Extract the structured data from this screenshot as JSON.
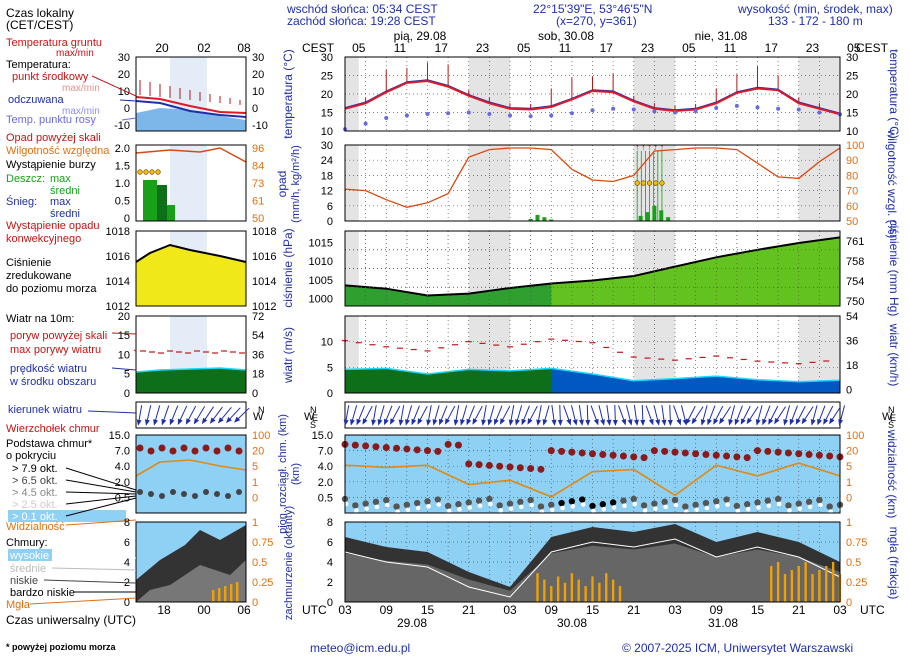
{
  "header": {
    "sunrise": "wschód słońca: 05:34 CEST",
    "sunset": "zachód słońca: 19:28 CEST",
    "coords": "22°15'39\"E, 53°46'5\"N",
    "grid": "(x=270, y=361)",
    "altitude_label": "wysokość (min, środek, max)",
    "altitude_values": "133 - 172 - 180 m"
  },
  "legend": {
    "local_time": "Czas lokalny",
    "local_time_zone": "(CET/CEST)",
    "soil_temp": "Temperatura gruntu",
    "soil_temp_minmax": "max/min",
    "temperature": "Temperatura:",
    "temp_mid": "punkt środkowy",
    "temp_max": "max/min",
    "temp_perceived": "odczuwana",
    "temp_perceived_minmax": "max/min",
    "dewpoint": "Temp. punktu rosy",
    "precip_above": "Opad powyżej skali",
    "humidity": "Wilgotność względna",
    "storm": "Wystąpienie burzy",
    "rain": "Deszcz:",
    "rain_max": "max",
    "rain_avg": "średni",
    "snow": "Śnieg:",
    "snow_max": "max",
    "snow_avg": "średni",
    "precip_conv1": "Wystąpienie opadu",
    "precip_conv2": "konwekcyjnego",
    "pressure1": "Ciśnienie",
    "pressure2": "zredukowane",
    "pressure3": "do poziomu morza",
    "wind_title": "Wiatr na 10m:",
    "gust_above": "poryw powyżej skali",
    "gust_max": "max porywy wiatru",
    "wind_speed1": "prędkość wiatru",
    "wind_speed2": "w środku obszaru",
    "wind_dir": "kierunek wiatru",
    "cloud_top": "Wierzchołek chmur",
    "cloud_base1": "Podstawa chmur*",
    "cloud_base2": "o pokryciu",
    "okt1": "> 7.9 okt.",
    "okt2": "> 6.5 okt.",
    "okt3": "> 4.5 okt.",
    "okt4": "> 2.5 okt.",
    "okt5": "> 0.1 okt.",
    "visibility": "Widzialność",
    "clouds": "Chmury:",
    "cl_high": "wysokie",
    "cl_mid": "średnie",
    "cl_low": "niskie",
    "cl_vlow": "bardzo niskie",
    "fog": "Mgła",
    "utc": "Czas uniwersalny (UTC)",
    "footnote": "* powyżej poziomu morza"
  },
  "axes": {
    "cest": "CEST",
    "utc": "UTC",
    "days": [
      "pią, 29.08",
      "sob, 30.08",
      "nie, 31.08"
    ],
    "utc_days": [
      "29.08",
      "30.08",
      "31.08"
    ],
    "top_hours": [
      "05",
      "11",
      "17",
      "23",
      "05",
      "11",
      "17",
      "23",
      "05",
      "11",
      "17",
      "23",
      "05"
    ],
    "bottom_hours": [
      "03",
      "09",
      "15",
      "21",
      "03",
      "09",
      "15",
      "21",
      "03",
      "09",
      "15",
      "21",
      "03"
    ],
    "legend_top_hours": [
      "20",
      "02",
      "08"
    ],
    "legend_bottom_hours": [
      "18",
      "00",
      "06"
    ],
    "temp_ticks": [
      "30",
      "25",
      "20",
      "15",
      "10"
    ],
    "temp_title": "temperatura (°C)",
    "precip_title1": "opad",
    "precip_title2": "(mm/h, kg/m²/h)",
    "precip_ticks": [
      "30",
      "24",
      "18",
      "12",
      "6",
      "0"
    ],
    "hum_title": "wilgotność wzgl. (%)",
    "hum_ticks": [
      "100",
      "90",
      "80",
      "70",
      "60",
      "50"
    ],
    "press_title": "ciśnienie (hPa)",
    "press_ticks": [
      "1015",
      "1010",
      "1005",
      "1000"
    ],
    "press_mm_title": "ciśnienie (mm Hg)",
    "press_mm_ticks": [
      "761",
      "758",
      "754",
      "750"
    ],
    "wind_title": "wiatr (m/s)",
    "wind_ticks": [
      "10",
      "5",
      "0"
    ],
    "wind_kmh_title": "wiatr (km/h)",
    "wind_kmh_ticks": [
      "54",
      "36",
      "18",
      "0"
    ],
    "cloud_title": "pion. rozciągł. chm. (km)",
    "cloud_ticks": [
      "15.0",
      "7.0",
      "4.0",
      "2.0",
      "0.5"
    ],
    "vis_title": "widzialność (km)",
    "vis_ticks": [
      "100",
      "20",
      "5",
      "1",
      "0"
    ],
    "cov_title": "zachmurzenie (oktanty)",
    "cov_ticks": [
      "8",
      "6",
      "4",
      "2",
      "0"
    ],
    "fog_title": "mgła (frakcja)",
    "fog_ticks": [
      "1",
      "0.75",
      "0.5",
      "0.25",
      "0"
    ],
    "legend_temp_ticks": [
      "30",
      "20",
      "10",
      "0",
      "-10"
    ],
    "legend_precip_ticks": [
      "2.0",
      "1.5",
      "1.0",
      "0.5",
      "0"
    ],
    "legend_hum_ticks": [
      "96",
      "84",
      "73",
      "61",
      "50"
    ],
    "legend_press_ticks": [
      "1018",
      "1016",
      "1014",
      "1012"
    ],
    "legend_wind_ticks": [
      "20",
      "15",
      "10",
      "5",
      "0"
    ],
    "legend_wind_kmh_ticks": [
      "72",
      "54",
      "36",
      "18",
      "0"
    ],
    "legend_cov_ticks": [
      "8",
      "6",
      "4",
      "2",
      "0"
    ],
    "legend_fog_ticks": [
      "1",
      "0.75",
      "0.5",
      "0.25",
      "0"
    ]
  },
  "footer": {
    "email": "meteo@icm.edu.pl",
    "copyright": "© 2007-2025 ICM, Uniwersytet Warszawski"
  },
  "colors": {
    "temp": "#e0192a",
    "perceived": "#1f2fa8",
    "dew": "#6a6ae0",
    "humidity": "#d84a10",
    "pressure_fill": "#2fa02f",
    "pressure_fill_hi": "#88d818",
    "wind_dark": "#0d6f1a",
    "wind_blue": "#0058c0",
    "sky": "#8fd0f5",
    "orange": "#e08a10",
    "label_blue": "#1f2fa8",
    "label_red": "#c41414",
    "label_orange": "#e07010"
  },
  "chart_data": [
    {
      "type": "line",
      "title": "temperatura (°C)",
      "x": [
        0,
        3,
        6,
        9,
        12,
        15,
        18,
        21,
        24,
        27,
        30,
        33,
        36,
        39,
        42,
        45,
        48,
        51,
        54,
        57,
        60,
        63,
        66,
        69,
        72
      ],
      "series": [
        {
          "name": "temperatura (punkt środkowy)",
          "values": [
            16,
            17.5,
            20.5,
            23,
            23.5,
            22,
            19.5,
            17.5,
            16,
            15.8,
            16.5,
            18.5,
            20.8,
            20.5,
            18,
            16,
            15.4,
            15.8,
            17.5,
            20.3,
            21.5,
            21,
            17.5,
            16,
            14.5
          ]
        },
        {
          "name": "punkt rosy",
          "values": [
            10.5,
            12,
            13.5,
            14.2,
            14.6,
            14.8,
            15,
            14.6,
            14.2,
            14,
            14.2,
            14.8,
            15.6,
            16,
            15.8,
            15.3,
            15,
            15.4,
            16.2,
            16.8,
            16.4,
            16,
            15.8,
            15,
            14.5
          ]
        }
      ],
      "ylim": [
        10,
        30
      ]
    },
    {
      "type": "line",
      "title": "opad / wilgotność względna",
      "x": [
        0,
        3,
        6,
        9,
        12,
        15,
        18,
        21,
        24,
        27,
        30,
        33,
        36,
        39,
        42,
        45,
        48,
        51,
        54,
        57,
        60,
        63,
        66,
        69,
        72
      ],
      "series": [
        {
          "name": "wilgotność (%)",
          "values": [
            71,
            70,
            64,
            59,
            62,
            68,
            92,
            97,
            98,
            98,
            97,
            84,
            77,
            76,
            80,
            96,
            97,
            98,
            98,
            97,
            88,
            79,
            78,
            89,
            98
          ]
        },
        {
          "name": "opad (mm/h)",
          "values": [
            0,
            0,
            0,
            0,
            0,
            0,
            0,
            0,
            0,
            0.3,
            0.6,
            0,
            0,
            0,
            0,
            0,
            3.5,
            6,
            0,
            0,
            0,
            0,
            0,
            0,
            0
          ]
        }
      ],
      "ylim": [
        0,
        30
      ]
    },
    {
      "type": "area",
      "title": "ciśnienie (hPa)",
      "x": [
        0,
        6,
        12,
        18,
        24,
        30,
        36,
        42,
        48,
        54,
        60,
        66,
        72
      ],
      "values": [
        1003.5,
        1002.6,
        1000.8,
        1001.3,
        1002.8,
        1004,
        1004.8,
        1006,
        1008.5,
        1011,
        1013,
        1014.8,
        1016.3
      ],
      "ylim": [
        1000,
        1017
      ]
    },
    {
      "type": "line",
      "title": "wiatr (m/s)",
      "x": [
        0,
        6,
        12,
        18,
        24,
        30,
        36,
        42,
        48,
        54,
        60,
        66,
        72
      ],
      "series": [
        {
          "name": "prędkość wiatru",
          "values": [
            4.6,
            4.8,
            3.7,
            4.6,
            4.3,
            4.8,
            3.7,
            2.4,
            2.8,
            3.3,
            2.6,
            2.2,
            2.5
          ]
        },
        {
          "name": "max porywy wiatru",
          "values": [
            10.2,
            9,
            8.2,
            10,
            9,
            10.5,
            9.8,
            7,
            6.4,
            7.2,
            6.2,
            5.7,
            6.5
          ]
        }
      ],
      "ylim": [
        0,
        15
      ]
    },
    {
      "type": "line",
      "title": "widzialność (km)",
      "x": [
        0,
        6,
        12,
        18,
        24,
        30,
        36,
        42,
        48,
        54,
        60,
        66,
        72
      ],
      "values": [
        15,
        14,
        15,
        6,
        8,
        0.3,
        12,
        13,
        1,
        15,
        10,
        16,
        10
      ],
      "ylim": [
        0,
        100
      ]
    },
    {
      "type": "area",
      "title": "zachmurzenie (oktanty)",
      "x": [
        0,
        6,
        12,
        18,
        24,
        30,
        36,
        42,
        48,
        54,
        60,
        66,
        72
      ],
      "values": [
        6.5,
        5.5,
        5,
        3,
        1.5,
        6.5,
        7.5,
        7,
        7.8,
        6,
        7,
        6,
        4
      ],
      "ylim": [
        0,
        8
      ]
    }
  ]
}
